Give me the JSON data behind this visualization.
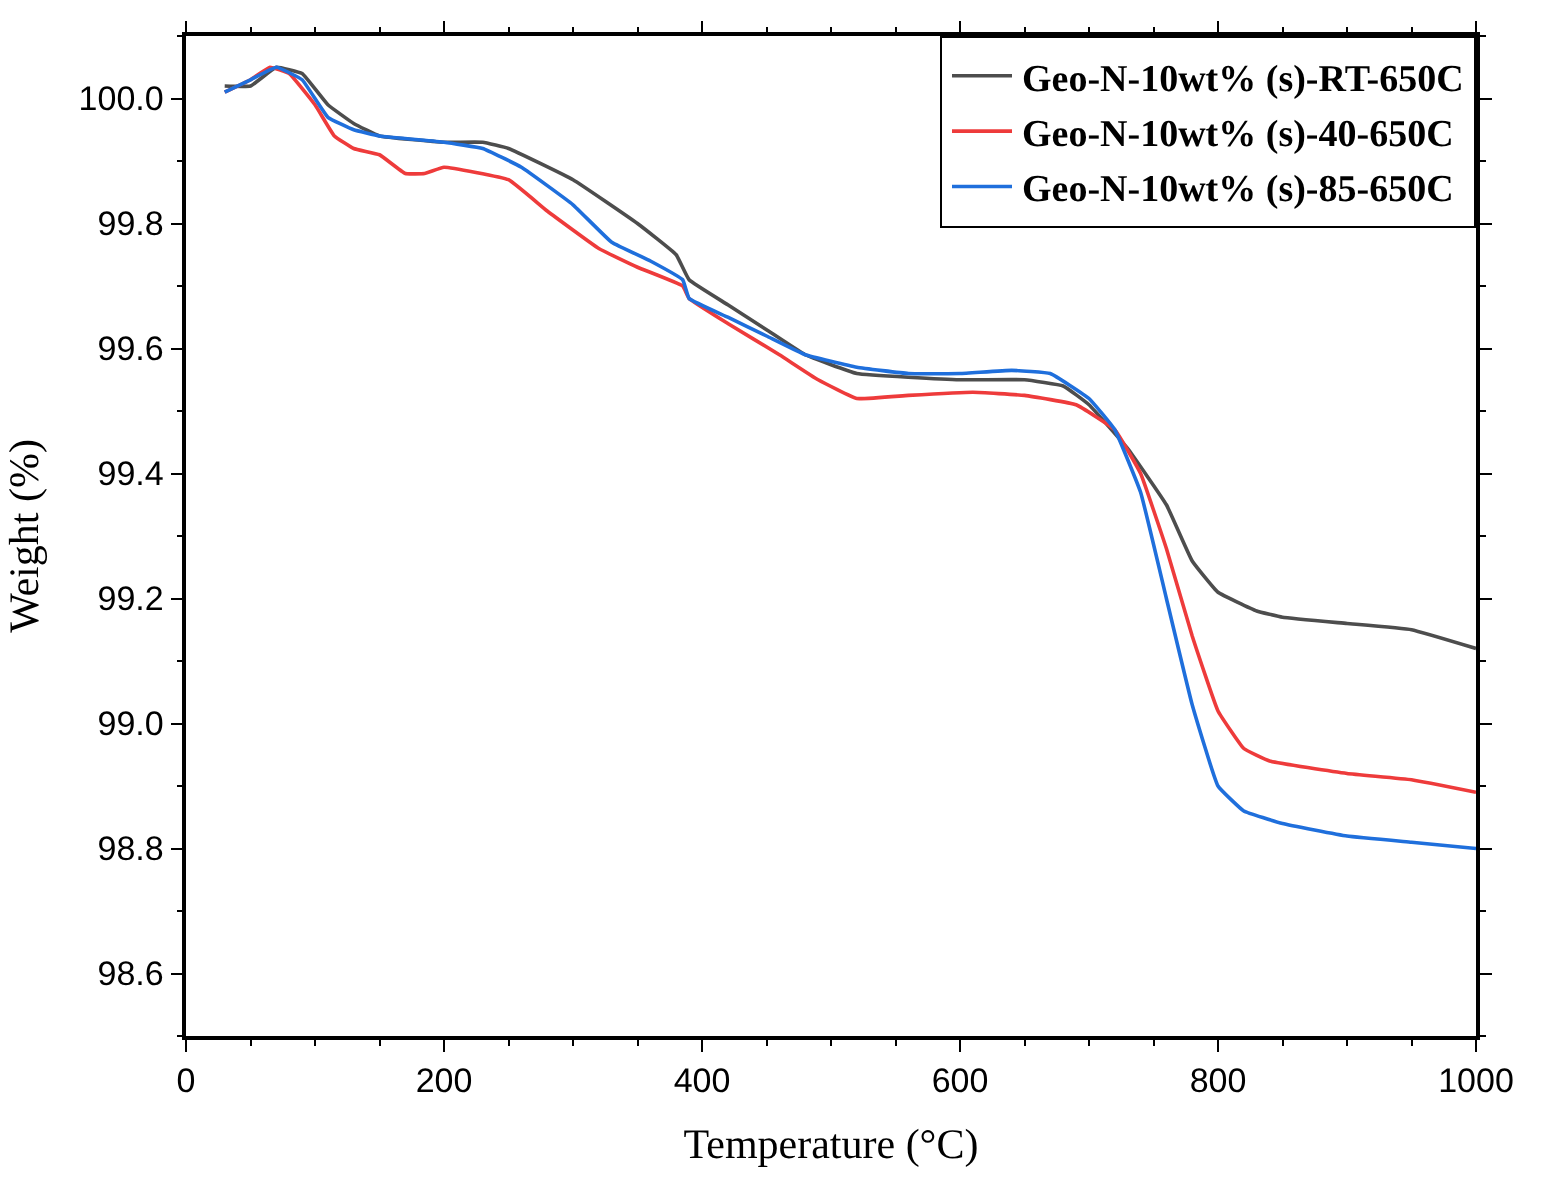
{
  "chart_data": {
    "type": "line",
    "xlabel": "Temperature (°C)",
    "ylabel": "Weight (%)",
    "xlim": [
      0,
      1000
    ],
    "ylim": [
      98.5,
      100.1
    ],
    "xticks": [
      0,
      200,
      400,
      600,
      800,
      1000
    ],
    "yticks": [
      {
        "value": 98.6,
        "label": "98.6"
      },
      {
        "value": 98.8,
        "label": "98.8"
      },
      {
        "value": 99.0,
        "label": "99.0"
      },
      {
        "value": 99.2,
        "label": "99.2"
      },
      {
        "value": 99.4,
        "label": "99.4"
      },
      {
        "value": 99.6,
        "label": "99.6"
      },
      {
        "value": 99.8,
        "label": "99.8"
      },
      {
        "value": 100.0,
        "label": "100.0"
      }
    ],
    "grid": false,
    "legend": "top right",
    "marker": "none",
    "line_style": "solid",
    "series": [
      {
        "name": "Geo-N-10wt% (s)-RT-650C",
        "color": "#4d4d4d",
        "x": [
          30,
          50,
          70,
          90,
          110,
          130,
          150,
          200,
          230,
          250,
          300,
          350,
          380,
          390,
          420,
          450,
          480,
          520,
          600,
          650,
          680,
          700,
          730,
          760,
          780,
          800,
          830,
          850,
          900,
          950,
          1000
        ],
        "values": [
          100.02,
          100.02,
          100.05,
          100.04,
          99.99,
          99.96,
          99.94,
          99.93,
          99.93,
          99.92,
          99.87,
          99.8,
          99.75,
          99.71,
          99.67,
          99.63,
          99.59,
          99.56,
          99.55,
          99.55,
          99.54,
          99.51,
          99.44,
          99.35,
          99.26,
          99.21,
          99.18,
          99.17,
          99.16,
          99.15,
          99.12
        ]
      },
      {
        "name": "Geo-N-10wt% (s)-40-650C",
        "color": "#ee3b3b",
        "x": [
          30,
          50,
          65,
          80,
          100,
          115,
          130,
          150,
          170,
          185,
          200,
          250,
          280,
          320,
          350,
          385,
          390,
          420,
          460,
          490,
          520,
          560,
          610,
          650,
          690,
          720,
          740,
          760,
          780,
          800,
          820,
          840,
          900,
          950,
          1000
        ],
        "values": [
          100.01,
          100.03,
          100.05,
          100.04,
          99.99,
          99.94,
          99.92,
          99.91,
          99.88,
          99.88,
          99.89,
          99.87,
          99.82,
          99.76,
          99.73,
          99.7,
          99.68,
          99.64,
          99.59,
          99.55,
          99.52,
          99.525,
          99.53,
          99.525,
          99.51,
          99.47,
          99.4,
          99.28,
          99.14,
          99.02,
          98.96,
          98.94,
          98.92,
          98.91,
          98.89
        ]
      },
      {
        "name": "Geo-N-10wt% (s)-85-650C",
        "color": "#1f6fdc",
        "x": [
          30,
          50,
          70,
          90,
          110,
          130,
          150,
          200,
          230,
          260,
          300,
          330,
          360,
          385,
          390,
          420,
          450,
          480,
          520,
          560,
          600,
          640,
          670,
          700,
          720,
          740,
          760,
          780,
          800,
          820,
          850,
          900,
          950,
          1000
        ],
        "values": [
          100.01,
          100.03,
          100.05,
          100.03,
          99.97,
          99.95,
          99.94,
          99.93,
          99.92,
          99.89,
          99.83,
          99.77,
          99.74,
          99.71,
          99.68,
          99.65,
          99.62,
          99.59,
          99.57,
          99.56,
          99.56,
          99.565,
          99.56,
          99.52,
          99.47,
          99.37,
          99.2,
          99.03,
          98.9,
          98.86,
          98.84,
          98.82,
          98.81,
          98.8
        ]
      }
    ]
  }
}
